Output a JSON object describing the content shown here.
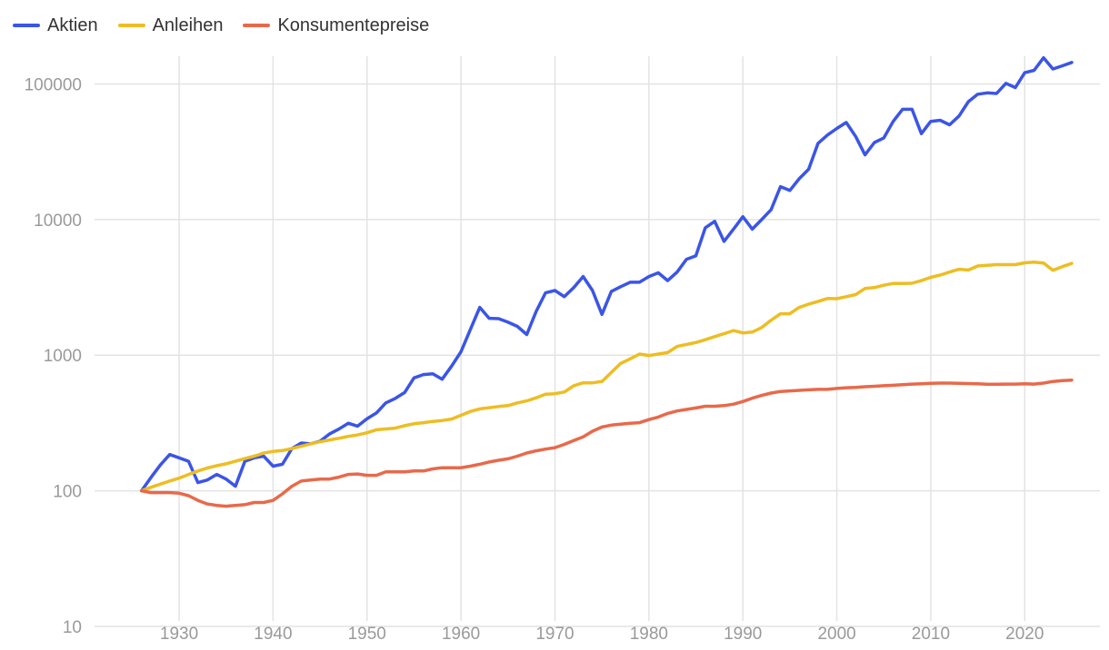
{
  "colors": {
    "aktien": "#3b55e6",
    "anleihen": "#eebd22",
    "konsumentepreise": "#e8694a",
    "grid": "#e3e3e3"
  },
  "chart_data": {
    "type": "line",
    "title": "",
    "xlabel": "",
    "ylabel": "",
    "yscale": "log",
    "ylim": [
      10,
      160000
    ],
    "xlim": [
      1921,
      2028
    ],
    "grid": true,
    "legend_position": "top-left",
    "x_ticks": [
      "1930",
      "1940",
      "1950",
      "1960",
      "1970",
      "1980",
      "1990",
      "2000",
      "2010",
      "2020"
    ],
    "y_ticks": [
      "100000",
      "10000",
      "1000",
      "100",
      "10"
    ],
    "series": [
      {
        "name": "Aktien",
        "color": "#3b55e6",
        "points": [
          [
            1926,
            100
          ],
          [
            1927,
            125
          ],
          [
            1928,
            155
          ],
          [
            1929,
            185
          ],
          [
            1930,
            175
          ],
          [
            1931,
            165
          ],
          [
            1932,
            115
          ],
          [
            1933,
            120
          ],
          [
            1934,
            132
          ],
          [
            1935,
            122
          ],
          [
            1936,
            108
          ],
          [
            1937,
            165
          ],
          [
            1938,
            175
          ],
          [
            1939,
            180
          ],
          [
            1940,
            152
          ],
          [
            1941,
            157
          ],
          [
            1942,
            205
          ],
          [
            1943,
            225
          ],
          [
            1944,
            222
          ],
          [
            1945,
            232
          ],
          [
            1946,
            262
          ],
          [
            1947,
            285
          ],
          [
            1948,
            315
          ],
          [
            1949,
            300
          ],
          [
            1950,
            340
          ],
          [
            1951,
            375
          ],
          [
            1952,
            445
          ],
          [
            1953,
            480
          ],
          [
            1954,
            530
          ],
          [
            1955,
            680
          ],
          [
            1956,
            720
          ],
          [
            1957,
            730
          ],
          [
            1958,
            665
          ],
          [
            1959,
            830
          ],
          [
            1960,
            1060
          ],
          [
            1961,
            1550
          ],
          [
            1962,
            2250
          ],
          [
            1963,
            1870
          ],
          [
            1964,
            1860
          ],
          [
            1965,
            1750
          ],
          [
            1966,
            1630
          ],
          [
            1967,
            1420
          ],
          [
            1968,
            2100
          ],
          [
            1969,
            2880
          ],
          [
            1970,
            3000
          ],
          [
            1971,
            2700
          ],
          [
            1972,
            3150
          ],
          [
            1973,
            3800
          ],
          [
            1974,
            3000
          ],
          [
            1975,
            2000
          ],
          [
            1976,
            2950
          ],
          [
            1977,
            3200
          ],
          [
            1978,
            3450
          ],
          [
            1979,
            3450
          ],
          [
            1980,
            3800
          ],
          [
            1981,
            4050
          ],
          [
            1982,
            3550
          ],
          [
            1983,
            4100
          ],
          [
            1984,
            5100
          ],
          [
            1985,
            5400
          ],
          [
            1986,
            8700
          ],
          [
            1987,
            9700
          ],
          [
            1988,
            6900
          ],
          [
            1989,
            8500
          ],
          [
            1990,
            10500
          ],
          [
            1991,
            8500
          ],
          [
            1992,
            10000
          ],
          [
            1993,
            11800
          ],
          [
            1994,
            17500
          ],
          [
            1995,
            16400
          ],
          [
            1996,
            20000
          ],
          [
            1997,
            23500
          ],
          [
            1998,
            36500
          ],
          [
            1999,
            42000
          ],
          [
            2000,
            47000
          ],
          [
            2001,
            52000
          ],
          [
            2002,
            41000
          ],
          [
            2003,
            30000
          ],
          [
            2004,
            37000
          ],
          [
            2005,
            40000
          ],
          [
            2006,
            53000
          ],
          [
            2007,
            65000
          ],
          [
            2008,
            65000
          ],
          [
            2009,
            43000
          ],
          [
            2010,
            53000
          ],
          [
            2011,
            54000
          ],
          [
            2012,
            50000
          ],
          [
            2013,
            58000
          ],
          [
            2014,
            74000
          ],
          [
            2015,
            84000
          ],
          [
            2016,
            86000
          ],
          [
            2017,
            85000
          ],
          [
            2018,
            101000
          ],
          [
            2019,
            94000
          ],
          [
            2020,
            121000
          ],
          [
            2021,
            126000
          ],
          [
            2022,
            156000
          ],
          [
            2023,
            129000
          ],
          [
            2024,
            136000
          ],
          [
            2025,
            144000
          ]
        ]
      },
      {
        "name": "Anleihen",
        "color": "#eebd22",
        "points": [
          [
            1926,
            100
          ],
          [
            1927,
            106
          ],
          [
            1928,
            112
          ],
          [
            1929,
            118
          ],
          [
            1930,
            124
          ],
          [
            1931,
            132
          ],
          [
            1932,
            140
          ],
          [
            1933,
            147
          ],
          [
            1934,
            153
          ],
          [
            1935,
            158
          ],
          [
            1936,
            165
          ],
          [
            1937,
            173
          ],
          [
            1938,
            180
          ],
          [
            1939,
            190
          ],
          [
            1940,
            195
          ],
          [
            1941,
            198
          ],
          [
            1942,
            205
          ],
          [
            1943,
            213
          ],
          [
            1944,
            222
          ],
          [
            1945,
            230
          ],
          [
            1946,
            237
          ],
          [
            1947,
            244
          ],
          [
            1948,
            252
          ],
          [
            1949,
            258
          ],
          [
            1950,
            268
          ],
          [
            1951,
            282
          ],
          [
            1952,
            286
          ],
          [
            1953,
            290
          ],
          [
            1954,
            302
          ],
          [
            1955,
            312
          ],
          [
            1956,
            318
          ],
          [
            1957,
            325
          ],
          [
            1958,
            330
          ],
          [
            1959,
            338
          ],
          [
            1960,
            360
          ],
          [
            1961,
            385
          ],
          [
            1962,
            402
          ],
          [
            1963,
            410
          ],
          [
            1964,
            418
          ],
          [
            1965,
            425
          ],
          [
            1966,
            445
          ],
          [
            1967,
            460
          ],
          [
            1968,
            485
          ],
          [
            1969,
            515
          ],
          [
            1970,
            520
          ],
          [
            1971,
            535
          ],
          [
            1972,
            595
          ],
          [
            1973,
            625
          ],
          [
            1974,
            625
          ],
          [
            1975,
            640
          ],
          [
            1976,
            745
          ],
          [
            1977,
            870
          ],
          [
            1978,
            940
          ],
          [
            1979,
            1020
          ],
          [
            1980,
            995
          ],
          [
            1981,
            1020
          ],
          [
            1982,
            1045
          ],
          [
            1983,
            1160
          ],
          [
            1984,
            1200
          ],
          [
            1985,
            1240
          ],
          [
            1986,
            1300
          ],
          [
            1987,
            1370
          ],
          [
            1988,
            1440
          ],
          [
            1989,
            1520
          ],
          [
            1990,
            1460
          ],
          [
            1991,
            1480
          ],
          [
            1992,
            1600
          ],
          [
            1993,
            1810
          ],
          [
            1994,
            2020
          ],
          [
            1995,
            2020
          ],
          [
            1996,
            2250
          ],
          [
            1997,
            2380
          ],
          [
            1998,
            2490
          ],
          [
            1999,
            2620
          ],
          [
            2000,
            2610
          ],
          [
            2001,
            2700
          ],
          [
            2002,
            2800
          ],
          [
            2003,
            3100
          ],
          [
            2004,
            3150
          ],
          [
            2005,
            3280
          ],
          [
            2006,
            3380
          ],
          [
            2007,
            3380
          ],
          [
            2008,
            3390
          ],
          [
            2009,
            3550
          ],
          [
            2010,
            3750
          ],
          [
            2011,
            3900
          ],
          [
            2012,
            4100
          ],
          [
            2013,
            4300
          ],
          [
            2014,
            4250
          ],
          [
            2015,
            4550
          ],
          [
            2016,
            4600
          ],
          [
            2017,
            4650
          ],
          [
            2018,
            4650
          ],
          [
            2019,
            4650
          ],
          [
            2020,
            4800
          ],
          [
            2021,
            4850
          ],
          [
            2022,
            4780
          ],
          [
            2023,
            4220
          ],
          [
            2024,
            4500
          ],
          [
            2025,
            4750
          ]
        ]
      },
      {
        "name": "Konsumentepreise",
        "color": "#e8694a",
        "points": [
          [
            1926,
            100
          ],
          [
            1927,
            97
          ],
          [
            1928,
            97
          ],
          [
            1929,
            97
          ],
          [
            1930,
            96
          ],
          [
            1931,
            92
          ],
          [
            1932,
            85
          ],
          [
            1933,
            80
          ],
          [
            1934,
            78
          ],
          [
            1935,
            77
          ],
          [
            1936,
            78
          ],
          [
            1937,
            79
          ],
          [
            1938,
            82
          ],
          [
            1939,
            82
          ],
          [
            1940,
            85
          ],
          [
            1941,
            95
          ],
          [
            1942,
            108
          ],
          [
            1943,
            118
          ],
          [
            1944,
            120
          ],
          [
            1945,
            122
          ],
          [
            1946,
            122
          ],
          [
            1947,
            126
          ],
          [
            1948,
            132
          ],
          [
            1949,
            133
          ],
          [
            1950,
            130
          ],
          [
            1951,
            130
          ],
          [
            1952,
            138
          ],
          [
            1953,
            138
          ],
          [
            1954,
            138
          ],
          [
            1955,
            140
          ],
          [
            1956,
            140
          ],
          [
            1957,
            145
          ],
          [
            1958,
            148
          ],
          [
            1959,
            148
          ],
          [
            1960,
            148
          ],
          [
            1961,
            152
          ],
          [
            1962,
            157
          ],
          [
            1963,
            163
          ],
          [
            1964,
            168
          ],
          [
            1965,
            172
          ],
          [
            1966,
            180
          ],
          [
            1967,
            190
          ],
          [
            1968,
            197
          ],
          [
            1969,
            203
          ],
          [
            1970,
            208
          ],
          [
            1971,
            220
          ],
          [
            1972,
            235
          ],
          [
            1973,
            250
          ],
          [
            1974,
            275
          ],
          [
            1975,
            295
          ],
          [
            1976,
            305
          ],
          [
            1977,
            310
          ],
          [
            1978,
            315
          ],
          [
            1979,
            318
          ],
          [
            1980,
            335
          ],
          [
            1981,
            350
          ],
          [
            1982,
            372
          ],
          [
            1983,
            388
          ],
          [
            1984,
            398
          ],
          [
            1985,
            408
          ],
          [
            1986,
            420
          ],
          [
            1987,
            420
          ],
          [
            1988,
            425
          ],
          [
            1989,
            435
          ],
          [
            1990,
            455
          ],
          [
            1991,
            482
          ],
          [
            1992,
            505
          ],
          [
            1993,
            525
          ],
          [
            1994,
            540
          ],
          [
            1995,
            545
          ],
          [
            1996,
            550
          ],
          [
            1997,
            555
          ],
          [
            1998,
            560
          ],
          [
            1999,
            560
          ],
          [
            2000,
            568
          ],
          [
            2001,
            575
          ],
          [
            2002,
            578
          ],
          [
            2003,
            585
          ],
          [
            2004,
            590
          ],
          [
            2005,
            595
          ],
          [
            2006,
            600
          ],
          [
            2007,
            605
          ],
          [
            2008,
            612
          ],
          [
            2009,
            615
          ],
          [
            2010,
            620
          ],
          [
            2011,
            622
          ],
          [
            2012,
            622
          ],
          [
            2013,
            620
          ],
          [
            2014,
            618
          ],
          [
            2015,
            615
          ],
          [
            2016,
            610
          ],
          [
            2017,
            610
          ],
          [
            2018,
            612
          ],
          [
            2019,
            612
          ],
          [
            2020,
            615
          ],
          [
            2021,
            612
          ],
          [
            2022,
            622
          ],
          [
            2023,
            640
          ],
          [
            2024,
            650
          ],
          [
            2025,
            655
          ]
        ]
      }
    ]
  }
}
